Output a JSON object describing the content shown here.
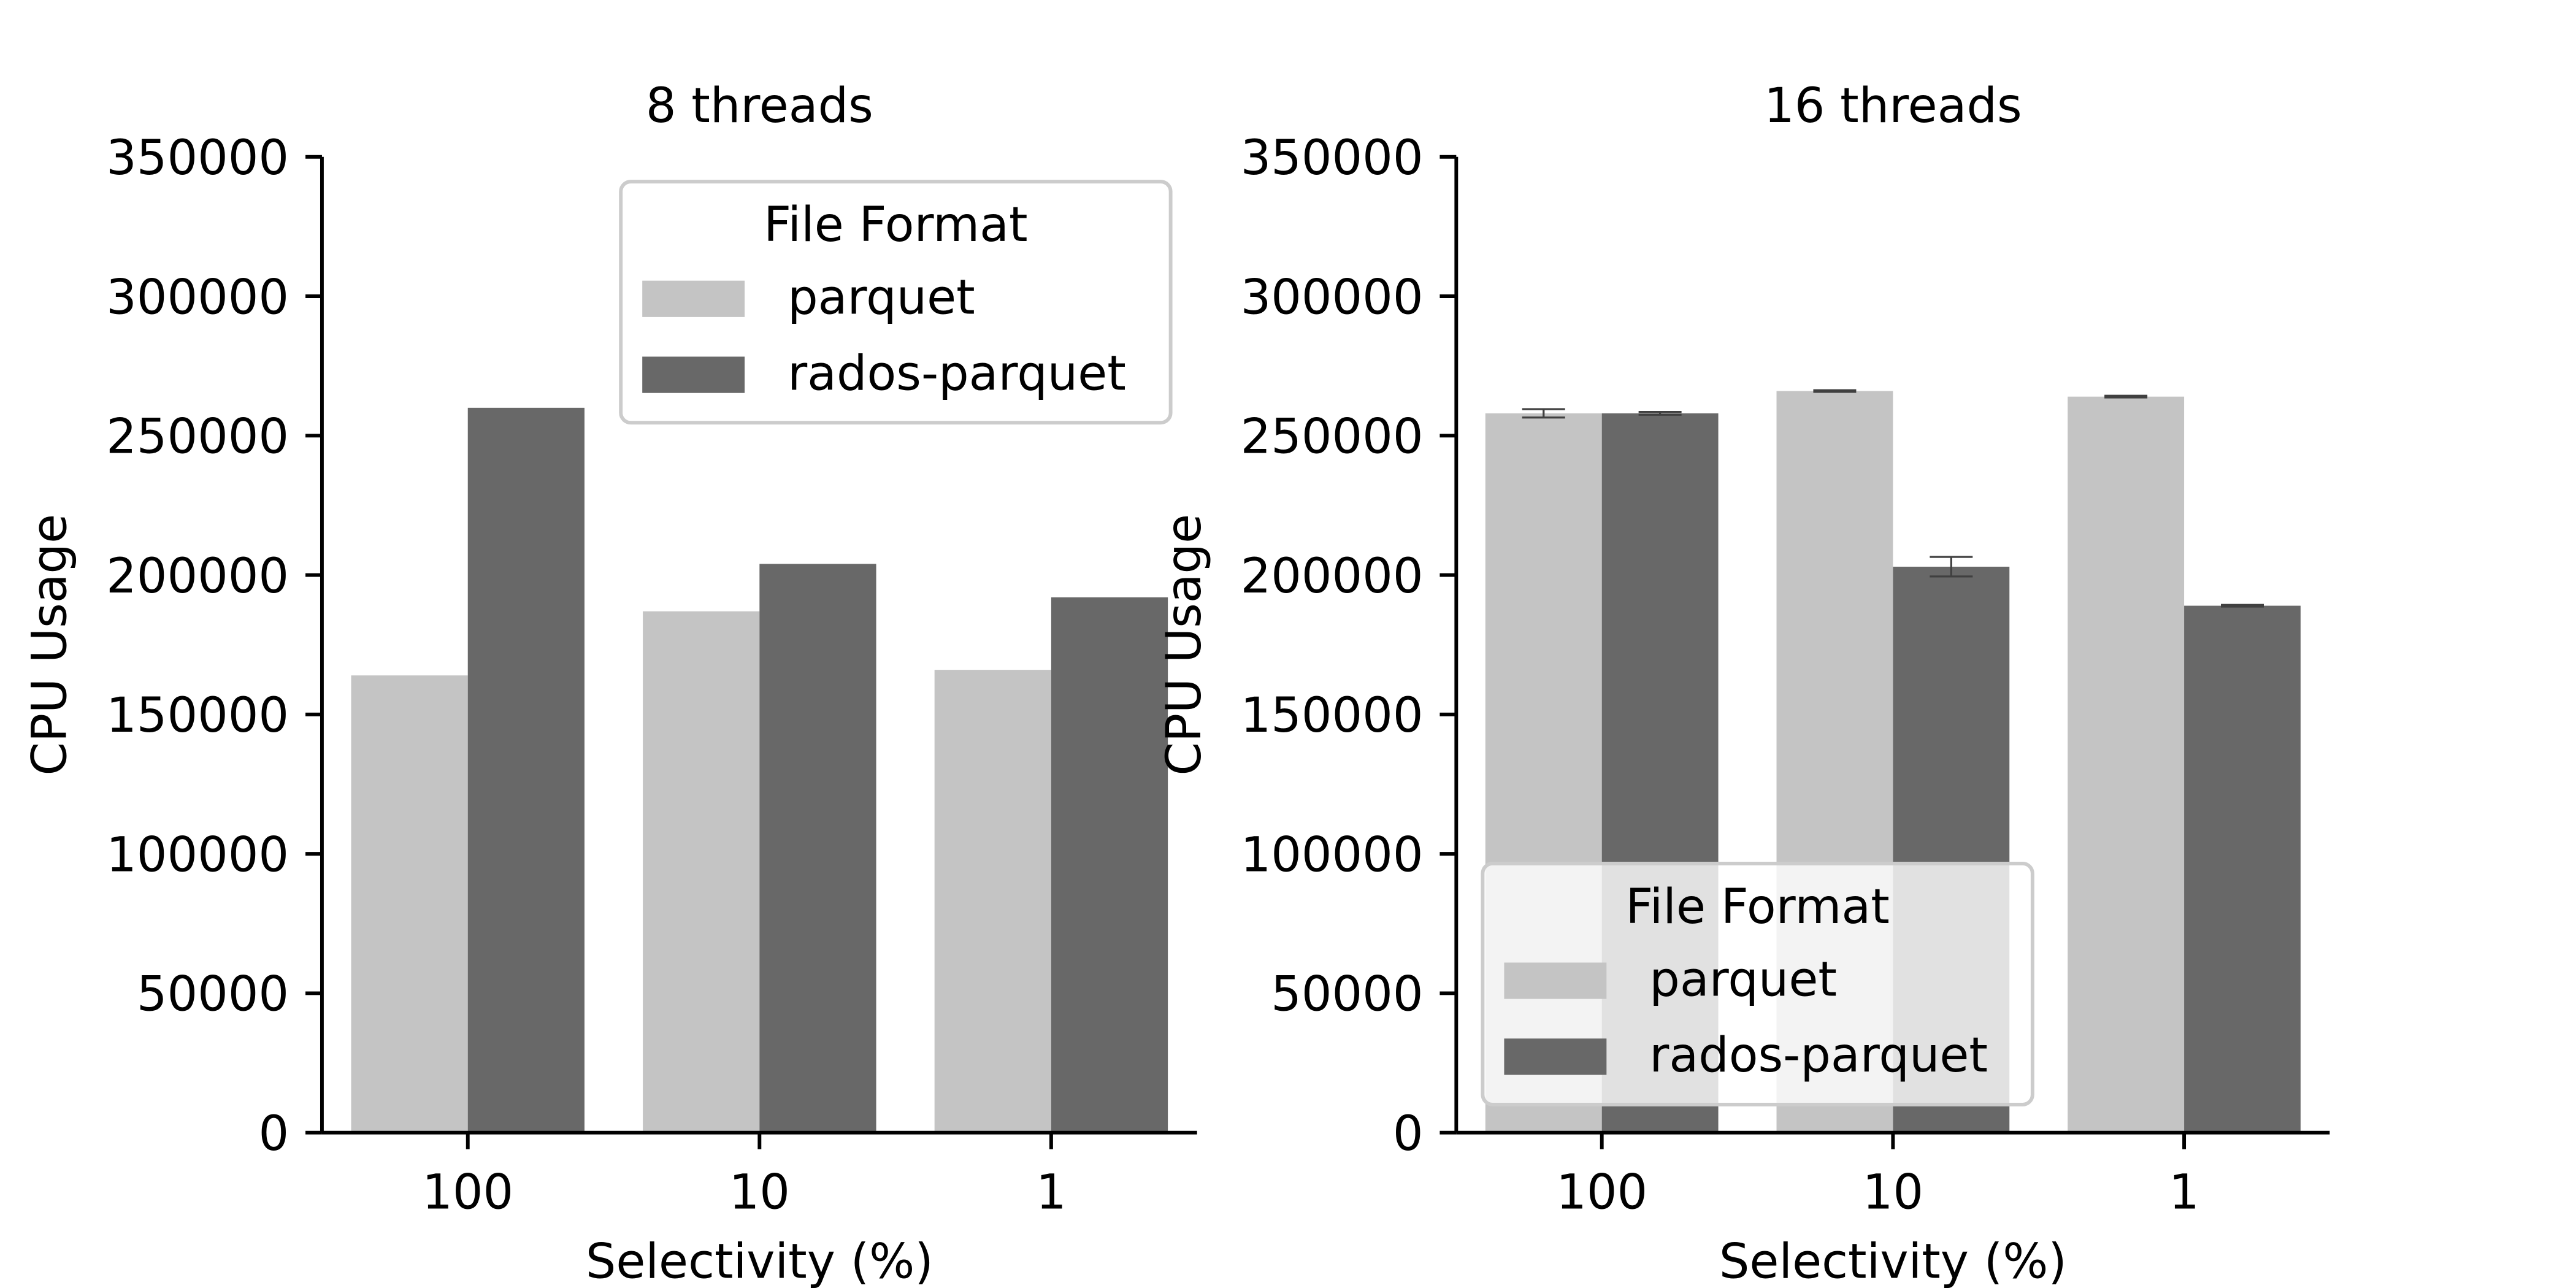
{
  "chart_data": [
    {
      "type": "bar",
      "title": "8 threads",
      "xlabel": "Selectivity (%)",
      "ylabel": "CPU Usage",
      "categories": [
        "100",
        "10",
        "1"
      ],
      "ylim": [
        0,
        350000
      ],
      "yticks": [
        "0",
        "50000",
        "100000",
        "150000",
        "200000",
        "250000",
        "300000",
        "350000"
      ],
      "grid": false,
      "series": [
        {
          "name": "parquet",
          "values": [
            164000,
            187000,
            166000
          ],
          "color": "#c4c4c4",
          "errors": [
            0,
            0,
            0
          ]
        },
        {
          "name": "rados-parquet",
          "values": [
            260000,
            204000,
            192000
          ],
          "color": "#686868",
          "errors": [
            0,
            0,
            0
          ]
        }
      ],
      "legend": {
        "title": "File Format",
        "position": "upper-right"
      }
    },
    {
      "type": "bar",
      "title": "16 threads",
      "xlabel": "Selectivity (%)",
      "ylabel": "CPU Usage",
      "categories": [
        "100",
        "10",
        "1"
      ],
      "ylim": [
        0,
        350000
      ],
      "yticks": [
        "0",
        "50000",
        "100000",
        "150000",
        "200000",
        "250000",
        "300000",
        "350000"
      ],
      "grid": false,
      "series": [
        {
          "name": "parquet",
          "values": [
            258000,
            266000,
            264000
          ],
          "color": "#c4c4c4",
          "errors": [
            1500,
            300,
            300
          ]
        },
        {
          "name": "rados-parquet",
          "values": [
            258000,
            203000,
            189000
          ],
          "color": "#686868",
          "errors": [
            500,
            3500,
            300
          ]
        }
      ],
      "legend": {
        "title": "File Format",
        "position": "lower-left"
      }
    }
  ]
}
